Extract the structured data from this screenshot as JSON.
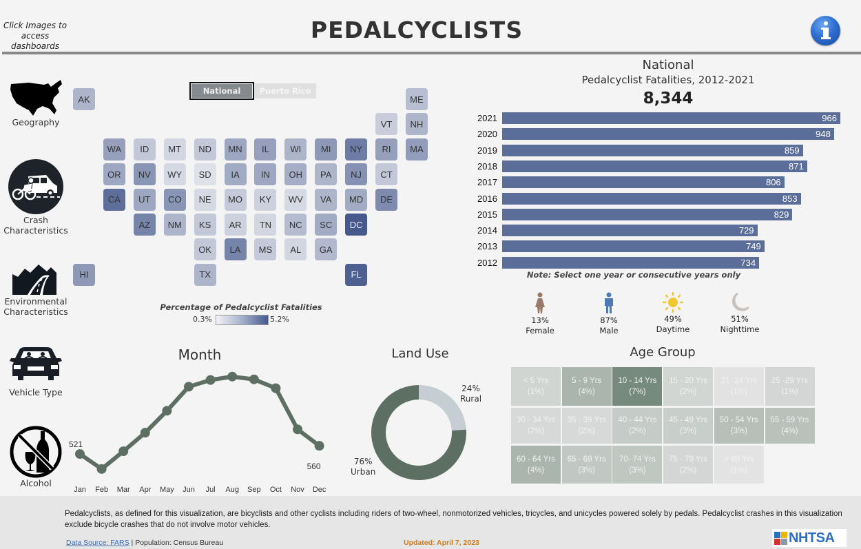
{
  "header": {
    "hint": "Click Images to access dashboards",
    "title": "PEDALCYCLISTS",
    "info_icon": "info-icon"
  },
  "nav": [
    {
      "label": "Geography",
      "icon": "us-map-icon"
    },
    {
      "label": "Crash Characteristics",
      "icon": "crash-bicycle-car-icon"
    },
    {
      "label": "Environmental Characteristics",
      "icon": "mountain-road-icon"
    },
    {
      "label": "Vehicle Type",
      "icon": "car-front-icon"
    },
    {
      "label": "Alcohol",
      "icon": "no-alcohol-icon"
    }
  ],
  "geo_toggle": {
    "options": [
      "National",
      "Puerto Rico"
    ],
    "selected": "National"
  },
  "state_map": {
    "legend_title": "Percentage of Pedalcyclist Fatalities",
    "legend_min": "0.3%",
    "legend_max": "5.2%",
    "color_low": "#f3f3f5",
    "color_high": "#46598d",
    "states": [
      {
        "code": "AK",
        "shade": 0.35,
        "col": 0,
        "row": 0
      },
      {
        "code": "ME",
        "shade": 0.28,
        "col": 11,
        "row": 0
      },
      {
        "code": "VT",
        "shade": 0.18,
        "col": 10,
        "row": 1
      },
      {
        "code": "NH",
        "shade": 0.35,
        "col": 11,
        "row": 1
      },
      {
        "code": "WA",
        "shade": 0.5,
        "col": 1,
        "row": 2
      },
      {
        "code": "ID",
        "shade": 0.22,
        "col": 2,
        "row": 2
      },
      {
        "code": "MT",
        "shade": 0.12,
        "col": 3,
        "row": 2
      },
      {
        "code": "ND",
        "shade": 0.22,
        "col": 4,
        "row": 2
      },
      {
        "code": "MN",
        "shade": 0.45,
        "col": 5,
        "row": 2
      },
      {
        "code": "IL",
        "shade": 0.5,
        "col": 6,
        "row": 2
      },
      {
        "code": "WI",
        "shade": 0.35,
        "col": 7,
        "row": 2
      },
      {
        "code": "MI",
        "shade": 0.55,
        "col": 8,
        "row": 2
      },
      {
        "code": "NY",
        "shade": 0.75,
        "col": 9,
        "row": 2
      },
      {
        "code": "RI",
        "shade": 0.5,
        "col": 10,
        "row": 2
      },
      {
        "code": "MA",
        "shade": 0.52,
        "col": 11,
        "row": 2
      },
      {
        "code": "OR",
        "shade": 0.45,
        "col": 1,
        "row": 3
      },
      {
        "code": "NV",
        "shade": 0.58,
        "col": 2,
        "row": 3
      },
      {
        "code": "WY",
        "shade": 0.1,
        "col": 3,
        "row": 3
      },
      {
        "code": "SD",
        "shade": 0.04,
        "col": 4,
        "row": 3
      },
      {
        "code": "IA",
        "shade": 0.42,
        "col": 5,
        "row": 3
      },
      {
        "code": "IN",
        "shade": 0.45,
        "col": 6,
        "row": 3
      },
      {
        "code": "OH",
        "shade": 0.4,
        "col": 7,
        "row": 3
      },
      {
        "code": "PA",
        "shade": 0.35,
        "col": 8,
        "row": 3
      },
      {
        "code": "NJ",
        "shade": 0.6,
        "col": 9,
        "row": 3
      },
      {
        "code": "CT",
        "shade": 0.22,
        "col": 10,
        "row": 3
      },
      {
        "code": "CA",
        "shade": 0.85,
        "col": 1,
        "row": 4
      },
      {
        "code": "UT",
        "shade": 0.45,
        "col": 2,
        "row": 4
      },
      {
        "code": "CO",
        "shade": 0.58,
        "col": 3,
        "row": 4
      },
      {
        "code": "NE",
        "shade": 0.1,
        "col": 4,
        "row": 4
      },
      {
        "code": "MO",
        "shade": 0.2,
        "col": 5,
        "row": 4
      },
      {
        "code": "KY",
        "shade": 0.15,
        "col": 6,
        "row": 4
      },
      {
        "code": "WV",
        "shade": 0.1,
        "col": 7,
        "row": 4
      },
      {
        "code": "VA",
        "shade": 0.35,
        "col": 8,
        "row": 4
      },
      {
        "code": "MD",
        "shade": 0.42,
        "col": 9,
        "row": 4
      },
      {
        "code": "DE",
        "shade": 0.65,
        "col": 10,
        "row": 4
      },
      {
        "code": "AZ",
        "shade": 0.7,
        "col": 2,
        "row": 5
      },
      {
        "code": "NM",
        "shade": 0.35,
        "col": 3,
        "row": 5
      },
      {
        "code": "KS",
        "shade": 0.22,
        "col": 4,
        "row": 5
      },
      {
        "code": "AR",
        "shade": 0.15,
        "col": 5,
        "row": 5
      },
      {
        "code": "TN",
        "shade": 0.12,
        "col": 6,
        "row": 5
      },
      {
        "code": "NC",
        "shade": 0.3,
        "col": 7,
        "row": 5
      },
      {
        "code": "SC",
        "shade": 0.42,
        "col": 8,
        "row": 5
      },
      {
        "code": "DC",
        "shade": 1.0,
        "col": 9,
        "row": 5
      },
      {
        "code": "OK",
        "shade": 0.22,
        "col": 4,
        "row": 6
      },
      {
        "code": "LA",
        "shade": 0.7,
        "col": 5,
        "row": 6
      },
      {
        "code": "MS",
        "shade": 0.2,
        "col": 6,
        "row": 6
      },
      {
        "code": "AL",
        "shade": 0.12,
        "col": 7,
        "row": 6
      },
      {
        "code": "GA",
        "shade": 0.32,
        "col": 8,
        "row": 6
      },
      {
        "code": "HI",
        "shade": 0.55,
        "col": 0,
        "row": 7
      },
      {
        "code": "TX",
        "shade": 0.35,
        "col": 4,
        "row": 7
      },
      {
        "code": "FL",
        "shade": 0.95,
        "col": 9,
        "row": 7
      }
    ]
  },
  "national": {
    "title": "National",
    "subtitle": "Pedalcyclist Fatalities,  2012-2021",
    "total": "8,344",
    "note": "Note: Select one year or consecutive years only",
    "bar_color": "#5b6d99"
  },
  "demographics": [
    {
      "value": "13%",
      "label": "Female",
      "icon": "female-icon",
      "color": "#9b7a68"
    },
    {
      "value": "87%",
      "label": "Male",
      "icon": "male-icon",
      "color": "#4f79b5"
    },
    {
      "value": "49%",
      "label": "Daytime",
      "icon": "sun-icon",
      "color": "#f0c830"
    },
    {
      "value": "51%",
      "label": "Nighttime",
      "icon": "moon-icon",
      "color": "#c9c1bb"
    }
  ],
  "month_title": "Month",
  "land_use": {
    "title": "Land Use",
    "rural_value": "24%",
    "rural_label": "Rural",
    "urban_value": "76%",
    "urban_label": "Urban"
  },
  "age_group": {
    "title": "Age Group",
    "cells": [
      {
        "label": "< 5 Yrs",
        "pct": "(1%)",
        "color": "#d1d5d2"
      },
      {
        "label": "5 - 9 Yrs",
        "pct": "(4%)",
        "color": "#a9b5ad"
      },
      {
        "label": "10 - 14 Yrs",
        "pct": "(7%)",
        "color": "#778a7e"
      },
      {
        "label": "15 - 20 Yrs",
        "pct": "(2%)",
        "color": "#d2d6d3"
      },
      {
        "label": "21 -24 Yrs",
        "pct": "(1%)",
        "color": "#e2e2e2"
      },
      {
        "label": "25 -29 Yrs",
        "pct": "(1%)",
        "color": "#d3d6d4"
      },
      {
        "label": "30 - 34 Yrs",
        "pct": "(2%)",
        "color": "#d6d9d7"
      },
      {
        "label": "35 - 39 Yrs",
        "pct": "(2%)",
        "color": "#d6d9d7"
      },
      {
        "label": "40 - 44 Yrs",
        "pct": "(2%)",
        "color": "#c5ccc7"
      },
      {
        "label": "45 - 49 Yrs",
        "pct": "(3%)",
        "color": "#c8cec9"
      },
      {
        "label": "50 - 54 Yrs",
        "pct": "(3%)",
        "color": "#b6c0b9"
      },
      {
        "label": "55 - 59 Yrs",
        "pct": "(4%)",
        "color": "#b8c2bb"
      },
      {
        "label": "60 - 64 Yrs",
        "pct": "(4%)",
        "color": "#aab5ad"
      },
      {
        "label": "65 - 69 Yrs",
        "pct": "(3%)",
        "color": "#c1c8c3"
      },
      {
        "label": "70- 74 Yrs",
        "pct": "(3%)",
        "color": "#bfc7c1"
      },
      {
        "label": "75 - 79 Yrs",
        "pct": "(2%)",
        "color": "#d3d6d4"
      },
      {
        "label": "> 80 Yrs",
        "pct": "(1%)",
        "color": "#e3e3e3"
      }
    ]
  },
  "footer": {
    "definition": "Pedalcyclists, as defined for this visualization, are bicyclists and other cyclists including riders of two-wheel, nonmotorized vehicles, tricycles, and unicycles powered solely by pedals. Pedalcyclist crashes in this visualization exclude bicycle crashes that do not involve motor vehicles.",
    "source_link": "Data Source: FARS",
    "source_rest": "| Population: Census Bureau",
    "updated": "Updated: April 7, 2023",
    "logo": "NHTSA"
  },
  "chart_data": [
    {
      "type": "bar",
      "title": "Pedalcyclist Fatalities, 2012-2021",
      "orientation": "horizontal",
      "categories": [
        "2021",
        "2020",
        "2019",
        "2018",
        "2017",
        "2016",
        "2015",
        "2014",
        "2013",
        "2012"
      ],
      "values": [
        966,
        948,
        859,
        871,
        806,
        853,
        829,
        729,
        749,
        734
      ],
      "xlim": [
        0,
        1000
      ],
      "grid": false
    },
    {
      "type": "line",
      "title": "Month",
      "categories": [
        "Jan",
        "Feb",
        "Mar",
        "Apr",
        "May",
        "Jun",
        "Jul",
        "Aug",
        "Sep",
        "Oct",
        "Nov",
        "Dec"
      ],
      "values": [
        521,
        450,
        534,
        622,
        726,
        840,
        872,
        888,
        875,
        833,
        638,
        560
      ],
      "labeled_points": {
        "Jan": "521",
        "Dec": "560"
      },
      "ylim": [
        420,
        910
      ],
      "color": "#5d6f63",
      "grid": false
    },
    {
      "type": "pie",
      "title": "Land Use",
      "donut": true,
      "labels": [
        "Rural",
        "Urban"
      ],
      "values": [
        24,
        76
      ],
      "colors": [
        "#c5ced3",
        "#5d6f63"
      ]
    }
  ]
}
